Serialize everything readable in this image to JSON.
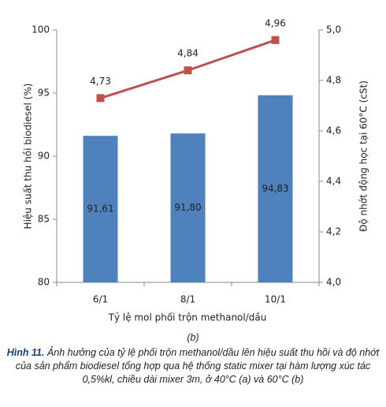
{
  "chart_data": {
    "type": "combo",
    "x_label": "Tỷ lệ mol phối trộn methanol/dầu",
    "y_label": "Hiệu suất thu hồi biodiesel (%)",
    "y2_label": "Độ nhớt động học tại 60°C (cSt)",
    "categories": [
      "6/1",
      "8/1",
      "10/1"
    ],
    "series": [
      {
        "type": "bar",
        "color": "#4f81bd",
        "values": [
          91.61,
          91.8,
          94.83
        ],
        "value_labels": [
          "91,61",
          "91,80",
          "94,83"
        ]
      },
      {
        "type": "line",
        "axis": "y2",
        "color": "#c0504d",
        "values": [
          4.73,
          4.84,
          4.96
        ],
        "value_labels": [
          "4,73",
          "4,84",
          "4,96"
        ]
      }
    ],
    "ylim": [
      80,
      100
    ],
    "yticks": [
      80,
      85,
      90,
      95,
      100
    ],
    "y2lim": [
      4.0,
      5.0
    ],
    "y2ticks": [
      {
        "value": 4.0,
        "label": "4,0"
      },
      {
        "value": 4.2,
        "label": "4,2"
      },
      {
        "value": 4.4,
        "label": "4,4"
      },
      {
        "value": 4.6,
        "label": "4,6"
      },
      {
        "value": 4.8,
        "label": "4,8"
      },
      {
        "value": 5.0,
        "label": "5,0"
      }
    ]
  },
  "caption": {
    "panel": "(b)",
    "label": "Hình 11.",
    "text": "Ảnh hưởng của tỷ lệ phối trộn methanol/dầu lên hiệu suất thu hồi và độ nhớt của sản phẩm biodiesel tổng hợp qua hệ thống static mixer tại hàm lượng xúc tác 0,5%kl, chiều dài mixer 3m, ở 40°C (a) và 60°C (b)"
  }
}
